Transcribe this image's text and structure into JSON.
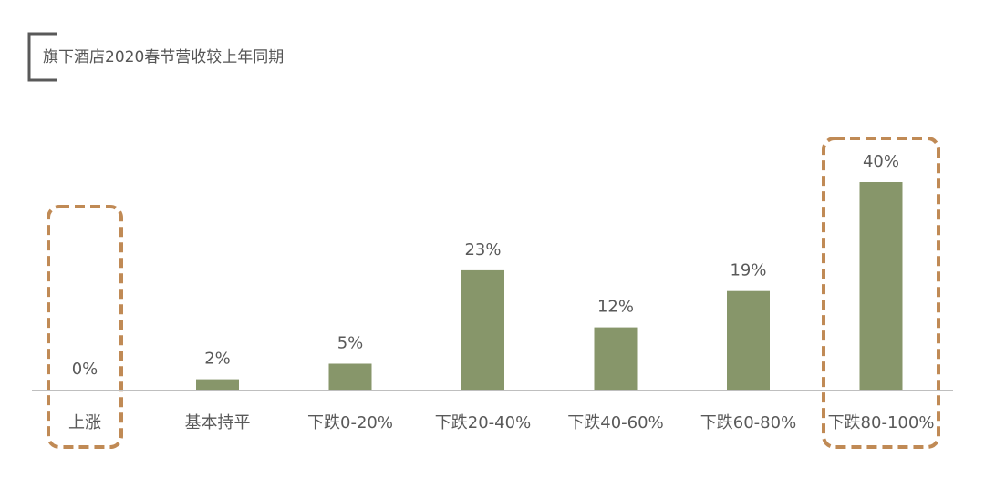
{
  "chart_data": {
    "type": "bar",
    "title": "旗下酒店2020春节营收较上年同期",
    "categories": [
      "上涨",
      "基本持平",
      "下跌0-20%",
      "下跌20-40%",
      "下跌40-60%",
      "下跌60-80%",
      "下跌80-100%"
    ],
    "values": [
      0,
      2,
      5,
      23,
      12,
      19,
      40
    ],
    "value_labels": [
      "0%",
      "2%",
      "5%",
      "23%",
      "12%",
      "19%",
      "40%"
    ],
    "unit": "%",
    "ylim": [
      0,
      42
    ],
    "grid": false,
    "legend": "none",
    "highlighted_categories": [
      "上涨",
      "下跌80-100%"
    ]
  },
  "colors": {
    "bar": "#87966a",
    "highlight_border": "#c08a55",
    "axis": "#bfbfbf",
    "title_bracket": "#595959",
    "text": "#595959"
  }
}
